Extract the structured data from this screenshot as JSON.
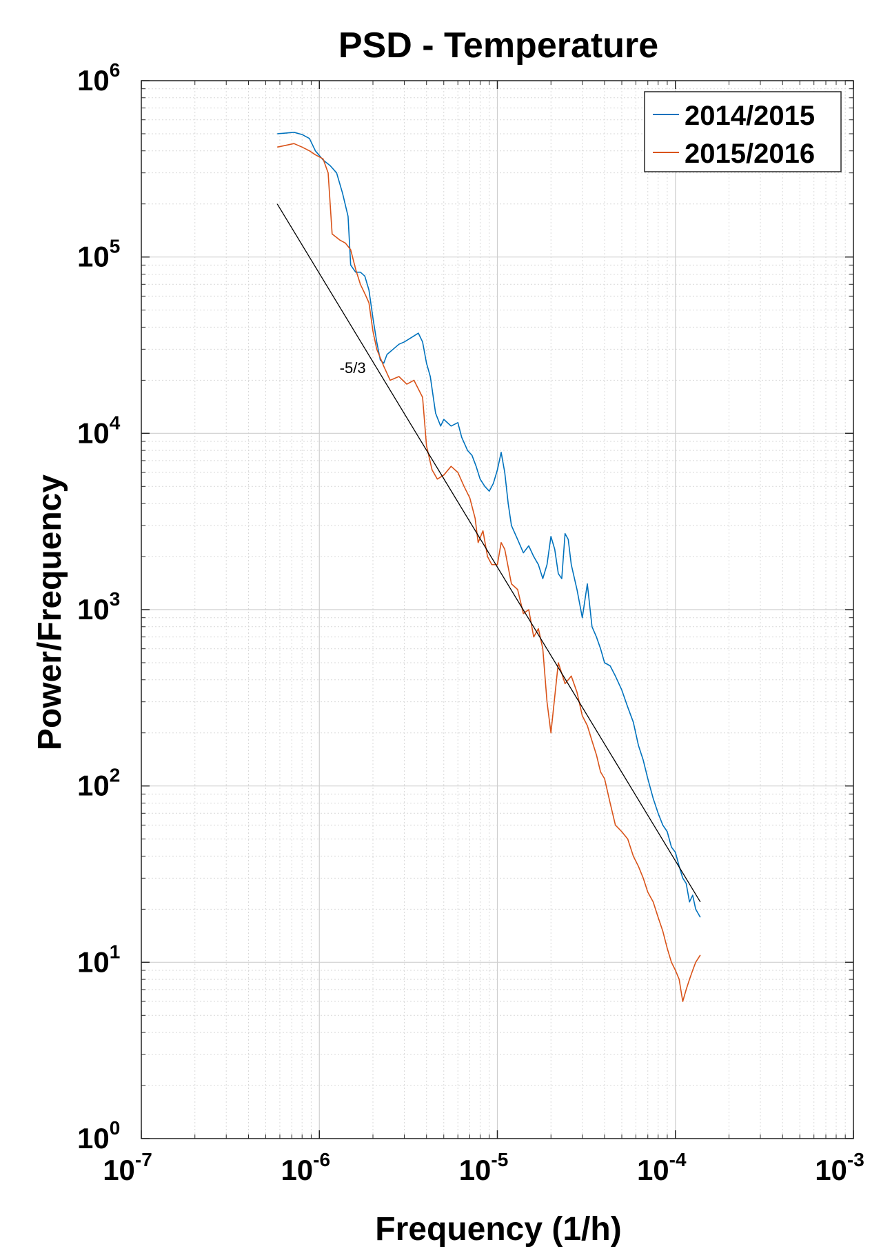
{
  "chart_data": {
    "type": "line",
    "title": "PSD - Temperature",
    "xlabel": "Frequency (1/h)",
    "ylabel": "Power/Frequency",
    "xscale": "log",
    "yscale": "log",
    "xlim": [
      1e-07,
      0.001
    ],
    "ylim": [
      1,
      1000000
    ],
    "xticks": [
      {
        "value": 1e-07,
        "base": "10",
        "exp": "-7"
      },
      {
        "value": 1e-06,
        "base": "10",
        "exp": "-6"
      },
      {
        "value": 1e-05,
        "base": "10",
        "exp": "-5"
      },
      {
        "value": 0.0001,
        "base": "10",
        "exp": "-4"
      },
      {
        "value": 0.001,
        "base": "10",
        "exp": "-3"
      }
    ],
    "yticks": [
      {
        "value": 1,
        "base": "10",
        "exp": "0"
      },
      {
        "value": 10,
        "base": "10",
        "exp": "1"
      },
      {
        "value": 100,
        "base": "10",
        "exp": "2"
      },
      {
        "value": 1000,
        "base": "10",
        "exp": "3"
      },
      {
        "value": 10000,
        "base": "10",
        "exp": "4"
      },
      {
        "value": 100000,
        "base": "10",
        "exp": "5"
      },
      {
        "value": 1000000,
        "base": "10",
        "exp": "6"
      }
    ],
    "grid": true,
    "legend_position": "top-right",
    "series": [
      {
        "name": "2014/2015",
        "color": "#0072BD",
        "points": [
          [
            5.8e-07,
            500000
          ],
          [
            6.5e-07,
            505000
          ],
          [
            7.2e-07,
            510000
          ],
          [
            8e-07,
            495000
          ],
          [
            8.8e-07,
            470000
          ],
          [
            9.5e-07,
            400000
          ],
          [
            1.05e-06,
            355000
          ],
          [
            1.15e-06,
            330000
          ],
          [
            1.25e-06,
            300000
          ],
          [
            1.35e-06,
            230000
          ],
          [
            1.45e-06,
            170000
          ],
          [
            1.5e-06,
            90000
          ],
          [
            1.6e-06,
            82000
          ],
          [
            1.7e-06,
            82000
          ],
          [
            1.8e-06,
            78000
          ],
          [
            1.9e-06,
            65000
          ],
          [
            2e-06,
            45000
          ],
          [
            2.1e-06,
            33000
          ],
          [
            2.2e-06,
            26000
          ],
          [
            2.3e-06,
            25000
          ],
          [
            2.4e-06,
            28000
          ],
          [
            2.6e-06,
            30000
          ],
          [
            2.8e-06,
            32000
          ],
          [
            3e-06,
            33000
          ],
          [
            3.3e-06,
            35000
          ],
          [
            3.6e-06,
            37000
          ],
          [
            3.8e-06,
            33000
          ],
          [
            4e-06,
            25000
          ],
          [
            4.2e-06,
            21000
          ],
          [
            4.5e-06,
            13000
          ],
          [
            4.8e-06,
            11000
          ],
          [
            5e-06,
            12000
          ],
          [
            5.5e-06,
            11000
          ],
          [
            6e-06,
            11500
          ],
          [
            6.3e-06,
            9500
          ],
          [
            6.8e-06,
            8000
          ],
          [
            7.2e-06,
            7500
          ],
          [
            7.6e-06,
            6500
          ],
          [
            8e-06,
            5500
          ],
          [
            8.5e-06,
            5000
          ],
          [
            9e-06,
            4700
          ],
          [
            9.5e-06,
            5200
          ],
          [
            1e-05,
            6200
          ],
          [
            1.05e-05,
            7800
          ],
          [
            1.1e-05,
            6000
          ],
          [
            1.15e-05,
            4000
          ],
          [
            1.2e-05,
            3000
          ],
          [
            1.3e-05,
            2500
          ],
          [
            1.4e-05,
            2100
          ],
          [
            1.5e-05,
            2300
          ],
          [
            1.6e-05,
            2000
          ],
          [
            1.7e-05,
            1800
          ],
          [
            1.8e-05,
            1500
          ],
          [
            1.9e-05,
            1800
          ],
          [
            2e-05,
            2600
          ],
          [
            2.1e-05,
            2200
          ],
          [
            2.2e-05,
            1600
          ],
          [
            2.3e-05,
            1500
          ],
          [
            2.4e-05,
            2700
          ],
          [
            2.5e-05,
            2500
          ],
          [
            2.6e-05,
            1800
          ],
          [
            2.8e-05,
            1300
          ],
          [
            3e-05,
            900
          ],
          [
            3.2e-05,
            1400
          ],
          [
            3.4e-05,
            800
          ],
          [
            3.6e-05,
            700
          ],
          [
            3.8e-05,
            600
          ],
          [
            4e-05,
            500
          ],
          [
            4.3e-05,
            480
          ],
          [
            4.6e-05,
            420
          ],
          [
            5e-05,
            350
          ],
          [
            5.4e-05,
            280
          ],
          [
            5.8e-05,
            230
          ],
          [
            6.2e-05,
            170
          ],
          [
            6.6e-05,
            140
          ],
          [
            7e-05,
            110
          ],
          [
            7.5e-05,
            85
          ],
          [
            8e-05,
            70
          ],
          [
            8.5e-05,
            60
          ],
          [
            9e-05,
            55
          ],
          [
            9.5e-05,
            45
          ],
          [
            0.0001,
            42
          ],
          [
            0.000105,
            35
          ],
          [
            0.00011,
            30
          ],
          [
            0.000115,
            28
          ],
          [
            0.00012,
            22
          ],
          [
            0.000125,
            24
          ],
          [
            0.00013,
            20
          ],
          [
            0.000138,
            18
          ]
        ]
      },
      {
        "name": "2015/2016",
        "color": "#D95319",
        "points": [
          [
            5.8e-07,
            420000
          ],
          [
            6.5e-07,
            430000
          ],
          [
            7.2e-07,
            440000
          ],
          [
            8e-07,
            420000
          ],
          [
            8.8e-07,
            400000
          ],
          [
            9.5e-07,
            380000
          ],
          [
            1.05e-06,
            360000
          ],
          [
            1.12e-06,
            300000
          ],
          [
            1.18e-06,
            135000
          ],
          [
            1.3e-06,
            125000
          ],
          [
            1.4e-06,
            120000
          ],
          [
            1.5e-06,
            110000
          ],
          [
            1.6e-06,
            85000
          ],
          [
            1.7e-06,
            70000
          ],
          [
            1.8e-06,
            62000
          ],
          [
            1.9e-06,
            55000
          ],
          [
            2e-06,
            38000
          ],
          [
            2.1e-06,
            30000
          ],
          [
            2.3e-06,
            24000
          ],
          [
            2.5e-06,
            20000
          ],
          [
            2.8e-06,
            21000
          ],
          [
            3.1e-06,
            19000
          ],
          [
            3.4e-06,
            20000
          ],
          [
            3.8e-06,
            16000
          ],
          [
            4e-06,
            8500
          ],
          [
            4.3e-06,
            6200
          ],
          [
            4.6e-06,
            5500
          ],
          [
            5e-06,
            5800
          ],
          [
            5.5e-06,
            6500
          ],
          [
            6e-06,
            6000
          ],
          [
            6.5e-06,
            5000
          ],
          [
            7e-06,
            4300
          ],
          [
            7.5e-06,
            3300
          ],
          [
            7.8e-06,
            2400
          ],
          [
            8.3e-06,
            2800
          ],
          [
            8.8e-06,
            2000
          ],
          [
            9.3e-06,
            1800
          ],
          [
            1e-05,
            1800
          ],
          [
            1.05e-05,
            2400
          ],
          [
            1.1e-05,
            2200
          ],
          [
            1.2e-05,
            1400
          ],
          [
            1.3e-05,
            1300
          ],
          [
            1.4e-05,
            950
          ],
          [
            1.5e-05,
            1000
          ],
          [
            1.6e-05,
            700
          ],
          [
            1.7e-05,
            780
          ],
          [
            1.8e-05,
            600
          ],
          [
            1.9e-05,
            300
          ],
          [
            2e-05,
            200
          ],
          [
            2.1e-05,
            320
          ],
          [
            2.2e-05,
            500
          ],
          [
            2.4e-05,
            380
          ],
          [
            2.6e-05,
            420
          ],
          [
            2.8e-05,
            340
          ],
          [
            3e-05,
            250
          ],
          [
            3.2e-05,
            220
          ],
          [
            3.4e-05,
            180
          ],
          [
            3.6e-05,
            150
          ],
          [
            3.8e-05,
            120
          ],
          [
            4e-05,
            110
          ],
          [
            4.3e-05,
            80
          ],
          [
            4.6e-05,
            60
          ],
          [
            5e-05,
            55
          ],
          [
            5.4e-05,
            50
          ],
          [
            5.8e-05,
            40
          ],
          [
            6.2e-05,
            35
          ],
          [
            6.6e-05,
            30
          ],
          [
            7e-05,
            25
          ],
          [
            7.5e-05,
            22
          ],
          [
            8e-05,
            18
          ],
          [
            8.5e-05,
            15
          ],
          [
            9e-05,
            12
          ],
          [
            9.5e-05,
            10
          ],
          [
            0.0001,
            9
          ],
          [
            0.000105,
            8
          ],
          [
            0.00011,
            6
          ],
          [
            0.000115,
            7
          ],
          [
            0.00012,
            8
          ],
          [
            0.000125,
            9
          ],
          [
            0.00013,
            10
          ],
          [
            0.000138,
            11
          ]
        ]
      }
    ],
    "reference_line": {
      "color": "#000000",
      "points": [
        [
          5.8e-07,
          200000
        ],
        [
          0.000138,
          22
        ]
      ]
    },
    "annotations": [
      {
        "text": "-5/3",
        "x": 1.3e-06,
        "y": 22000
      }
    ]
  }
}
